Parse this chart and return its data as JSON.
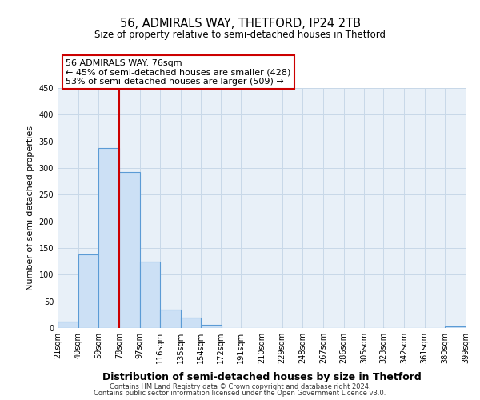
{
  "title": "56, ADMIRALS WAY, THETFORD, IP24 2TB",
  "subtitle": "Size of property relative to semi-detached houses in Thetford",
  "xlabel": "Distribution of semi-detached houses by size in Thetford",
  "ylabel": "Number of semi-detached properties",
  "bin_edges": [
    21,
    40,
    59,
    78,
    97,
    116,
    135,
    154,
    172,
    191,
    210,
    229,
    248,
    267,
    286,
    305,
    323,
    342,
    361,
    380,
    399
  ],
  "bin_labels": [
    "21sqm",
    "40sqm",
    "59sqm",
    "78sqm",
    "97sqm",
    "116sqm",
    "135sqm",
    "154sqm",
    "172sqm",
    "191sqm",
    "210sqm",
    "229sqm",
    "248sqm",
    "267sqm",
    "286sqm",
    "305sqm",
    "323sqm",
    "342sqm",
    "361sqm",
    "380sqm",
    "399sqm"
  ],
  "counts": [
    12,
    138,
    337,
    292,
    124,
    35,
    19,
    6,
    0,
    0,
    0,
    0,
    0,
    0,
    0,
    0,
    0,
    0,
    0,
    3
  ],
  "bar_face_color": "#cce0f5",
  "bar_edge_color": "#5b9bd5",
  "vline_x": 78,
  "vline_color": "#cc0000",
  "annotation_line1": "56 ADMIRALS WAY: 76sqm",
  "annotation_line2": "← 45% of semi-detached houses are smaller (428)",
  "annotation_line3": "53% of semi-detached houses are larger (509) →",
  "annotation_box_edge_color": "#cc0000",
  "ylim": [
    0,
    450
  ],
  "yticks": [
    0,
    50,
    100,
    150,
    200,
    250,
    300,
    350,
    400,
    450
  ],
  "grid_color": "#c8d8e8",
  "background_color": "#ffffff",
  "plot_bg_color": "#e8f0f8",
  "footer_line1": "Contains HM Land Registry data © Crown copyright and database right 2024.",
  "footer_line2": "Contains public sector information licensed under the Open Government Licence v3.0.",
  "title_fontsize": 10.5,
  "subtitle_fontsize": 8.5,
  "xlabel_fontsize": 9,
  "ylabel_fontsize": 8,
  "tick_fontsize": 7,
  "annotation_fontsize": 8,
  "footer_fontsize": 6
}
